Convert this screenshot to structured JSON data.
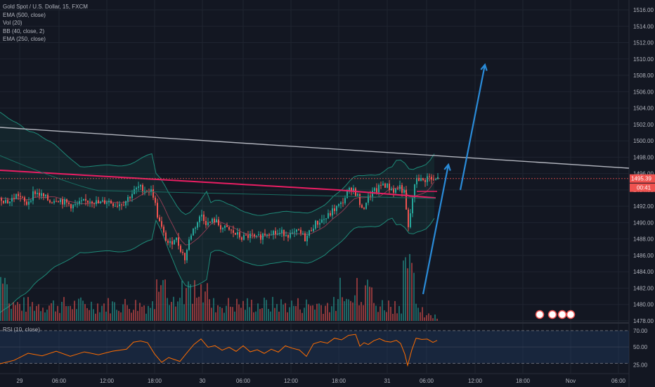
{
  "legend": {
    "symbol": "Gold Spot / U.S. Dollar, 15, FXCM",
    "studies": [
      "EMA (500, close)",
      "Vol (20)",
      "BB (40, close, 2)",
      "EMA (250, close)"
    ]
  },
  "rsi": {
    "label": "RSI (10, close)",
    "ticks": [
      "70.00",
      "50.00",
      "25.00"
    ]
  },
  "price_label": "1495.39",
  "countdown": "00:41",
  "colors": {
    "background": "#131722",
    "grid": "#1f2430",
    "up": "#26a69a",
    "down": "#ef5350",
    "ema_long": "#e91e63",
    "bb": "#1e8a78",
    "trendline": "#b2b5be",
    "arrow": "#2a8bd8",
    "rsi_line": "#ff6d00"
  },
  "chart_data": {
    "type": "candlestick",
    "y_ticks": [
      "1516.00",
      "1514.00",
      "1512.00",
      "1510.00",
      "1508.00",
      "1506.00",
      "1504.00",
      "1502.00",
      "1500.00",
      "1498.00",
      "1496.00",
      "1494.00",
      "1492.00",
      "1490.00",
      "1488.00",
      "1486.00",
      "1484.00",
      "1482.00",
      "1480.00",
      "1478.00"
    ],
    "x_ticks": [
      "29",
      "06:00",
      "12:00",
      "18:00",
      "30",
      "06:00",
      "12:00",
      "18:00",
      "31",
      "06:00",
      "12:00",
      "18:00",
      "Nov",
      "06:00"
    ],
    "ylim": [
      1478,
      1516.5
    ],
    "last_price": 1495.39,
    "price_path": [
      [
        0,
        1493.0
      ],
      [
        12,
        1492.5
      ],
      [
        24,
        1493.5
      ],
      [
        36,
        1492.2
      ],
      [
        48,
        1493.8
      ],
      [
        60,
        1493.2
      ],
      [
        70,
        1492.6
      ],
      [
        80,
        1493.0
      ],
      [
        92,
        1492.4
      ],
      [
        104,
        1492.0
      ],
      [
        116,
        1492.4
      ],
      [
        128,
        1492.8
      ],
      [
        140,
        1492.3
      ],
      [
        152,
        1492.7
      ],
      [
        164,
        1492.2
      ],
      [
        176,
        1492.5
      ],
      [
        186,
        1493.5
      ],
      [
        196,
        1494.3
      ],
      [
        206,
        1494.0
      ],
      [
        216,
        1493.8
      ],
      [
        224,
        1490.5
      ],
      [
        232,
        1488.5
      ],
      [
        240,
        1487.2
      ],
      [
        248,
        1488.3
      ],
      [
        256,
        1486.8
      ],
      [
        262,
        1485.6
      ],
      [
        270,
        1488.5
      ],
      [
        278,
        1489.8
      ],
      [
        286,
        1491.0
      ],
      [
        294,
        1489.8
      ],
      [
        304,
        1490.3
      ],
      [
        314,
        1489.4
      ],
      [
        324,
        1489.1
      ],
      [
        334,
        1488.6
      ],
      [
        344,
        1488.1
      ],
      [
        354,
        1488.4
      ],
      [
        364,
        1488.0
      ],
      [
        374,
        1488.6
      ],
      [
        384,
        1489.0
      ],
      [
        394,
        1488.6
      ],
      [
        404,
        1488.8
      ],
      [
        414,
        1488.4
      ],
      [
        424,
        1488.9
      ],
      [
        434,
        1488.0
      ],
      [
        444,
        1489.6
      ],
      [
        454,
        1490.2
      ],
      [
        464,
        1490.6
      ],
      [
        474,
        1491.6
      ],
      [
        484,
        1492.2
      ],
      [
        492,
        1493.4
      ],
      [
        500,
        1494.4
      ],
      [
        508,
        1493.2
      ],
      [
        514,
        1491.4
      ],
      [
        520,
        1492.6
      ],
      [
        528,
        1493.6
      ],
      [
        536,
        1494.0
      ],
      [
        544,
        1494.8
      ],
      [
        552,
        1494.3
      ],
      [
        560,
        1493.9
      ],
      [
        568,
        1494.4
      ],
      [
        574,
        1493.6
      ],
      [
        580,
        1489.2
      ],
      [
        586,
        1493.0
      ],
      [
        592,
        1495.6
      ],
      [
        600,
        1495.0
      ],
      [
        608,
        1495.6
      ],
      [
        616,
        1495.0
      ],
      [
        622,
        1495.39
      ]
    ],
    "rsi_ylim": [
      20,
      75
    ],
    "rsi_path": [
      [
        0,
        30
      ],
      [
        20,
        35
      ],
      [
        40,
        42
      ],
      [
        60,
        38
      ],
      [
        80,
        45
      ],
      [
        100,
        40
      ],
      [
        120,
        43
      ],
      [
        140,
        41
      ],
      [
        160,
        44
      ],
      [
        180,
        47
      ],
      [
        190,
        57
      ],
      [
        200,
        58
      ],
      [
        210,
        55
      ],
      [
        220,
        42
      ],
      [
        230,
        30
      ],
      [
        240,
        38
      ],
      [
        256,
        33
      ],
      [
        266,
        44
      ],
      [
        276,
        52
      ],
      [
        286,
        60
      ],
      [
        296,
        50
      ],
      [
        306,
        53
      ],
      [
        316,
        47
      ],
      [
        326,
        51
      ],
      [
        336,
        46
      ],
      [
        346,
        50
      ],
      [
        356,
        44
      ],
      [
        366,
        47
      ],
      [
        376,
        43
      ],
      [
        386,
        48
      ],
      [
        396,
        44
      ],
      [
        406,
        52
      ],
      [
        416,
        48
      ],
      [
        426,
        46
      ],
      [
        436,
        38
      ],
      [
        446,
        55
      ],
      [
        456,
        57
      ],
      [
        466,
        54
      ],
      [
        476,
        62
      ],
      [
        486,
        60
      ],
      [
        496,
        63
      ],
      [
        506,
        64
      ],
      [
        512,
        52
      ],
      [
        518,
        55
      ],
      [
        524,
        54
      ],
      [
        532,
        59
      ],
      [
        540,
        61
      ],
      [
        548,
        58
      ],
      [
        556,
        57
      ],
      [
        564,
        59
      ],
      [
        570,
        55
      ],
      [
        576,
        40
      ],
      [
        580,
        26
      ],
      [
        586,
        45
      ],
      [
        592,
        60
      ],
      [
        600,
        58
      ],
      [
        608,
        59
      ],
      [
        616,
        57
      ],
      [
        622,
        58
      ]
    ]
  }
}
